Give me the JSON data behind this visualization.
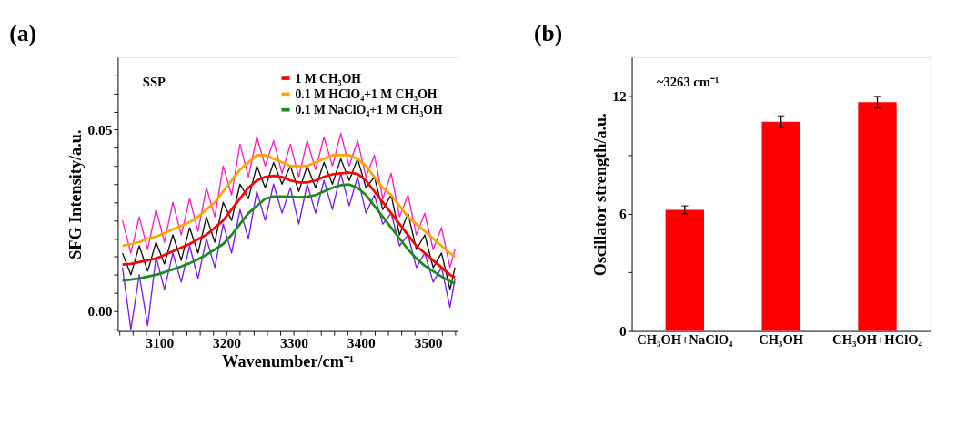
{
  "chart_data": [
    {
      "type": "line",
      "title": "(a)",
      "xlabel": "Wavenumber/cm⁻¹",
      "ylabel": "SFG Intensity/a.u.",
      "annotations": [
        "SSP"
      ],
      "legend": "top right",
      "xlim": [
        3038,
        3544
      ],
      "ylim": [
        -0.0055,
        0.07
      ],
      "xticks": [
        {
          "value": 3040,
          "label": null
        },
        {
          "value": 3060,
          "label": null
        },
        {
          "value": 3080,
          "label": null
        },
        3100,
        {
          "value": 3120,
          "label": null
        },
        {
          "value": 3140,
          "label": null
        },
        {
          "value": 3160,
          "label": null
        },
        {
          "value": 3180,
          "label": null
        },
        3200,
        {
          "value": 3220,
          "label": null
        },
        {
          "value": 3240,
          "label": null
        },
        {
          "value": 3260,
          "label": null
        },
        {
          "value": 3280,
          "label": null
        },
        3300,
        {
          "value": 3320,
          "label": null
        },
        {
          "value": 3340,
          "label": null
        },
        {
          "value": 3360,
          "label": null
        },
        {
          "value": 3380,
          "label": null
        },
        3400,
        {
          "value": 3420,
          "label": null
        },
        {
          "value": 3440,
          "label": null
        },
        {
          "value": 3460,
          "label": null
        },
        {
          "value": 3480,
          "label": null
        },
        3500,
        {
          "value": 3520,
          "label": null
        },
        {
          "value": 3540,
          "label": null
        }
      ],
      "yticks": [
        {
          "value": -0.005,
          "label": null
        },
        {
          "value": 0,
          "label": "0.00"
        },
        {
          "value": 0.005,
          "label": null
        },
        {
          "value": 0.01,
          "label": null
        },
        {
          "value": 0.015,
          "label": null
        },
        {
          "value": 0.02,
          "label": null
        },
        {
          "value": 0.025,
          "label": null
        },
        {
          "value": 0.03,
          "label": null
        },
        {
          "value": 0.035,
          "label": null
        },
        {
          "value": 0.04,
          "label": null
        },
        {
          "value": 0.045,
          "label": null
        },
        0.05,
        {
          "value": 0.055,
          "label": null
        },
        {
          "value": 0.06,
          "label": null
        },
        {
          "value": 0.065,
          "label": null
        }
      ],
      "x": [
        3045,
        3057.5,
        3070,
        3082.5,
        3095,
        3107.5,
        3120,
        3132.5,
        3145,
        3157.5,
        3170,
        3182.5,
        3195,
        3207.5,
        3220,
        3232.5,
        3245,
        3257.5,
        3270,
        3282.5,
        3295,
        3307.5,
        3320,
        3332.5,
        3345,
        3357.5,
        3370,
        3382.5,
        3395,
        3407.5,
        3420,
        3432.5,
        3445,
        3457.5,
        3470,
        3482.5,
        3495,
        3507.5,
        3520,
        3532.5,
        3540
      ],
      "series": [
        {
          "color": "#ff1fc8",
          "values": [
            0.025,
            0.016,
            0.026,
            0.017,
            0.028,
            0.019,
            0.03,
            0.021,
            0.031,
            0.022,
            0.034,
            0.026,
            0.04,
            0.032,
            0.046,
            0.037,
            0.048,
            0.04,
            0.047,
            0.038,
            0.046,
            0.037,
            0.047,
            0.039,
            0.048,
            0.04,
            0.049,
            0.04,
            0.047,
            0.037,
            0.043,
            0.031,
            0.038,
            0.026,
            0.032,
            0.021,
            0.027,
            0.017,
            0.023,
            0.012,
            0.017
          ]
        },
        {
          "color": "#111111",
          "values": [
            0.016,
            0.01,
            0.018,
            0.011,
            0.019,
            0.013,
            0.021,
            0.014,
            0.023,
            0.016,
            0.026,
            0.019,
            0.03,
            0.025,
            0.035,
            0.031,
            0.04,
            0.034,
            0.041,
            0.035,
            0.04,
            0.033,
            0.04,
            0.034,
            0.041,
            0.035,
            0.042,
            0.036,
            0.042,
            0.034,
            0.037,
            0.028,
            0.032,
            0.021,
            0.027,
            0.017,
            0.021,
            0.012,
            0.016,
            0.006,
            0.012
          ]
        },
        {
          "color": "#7a1fe8",
          "values": [
            0.012,
            -0.005,
            0.01,
            -0.004,
            0.015,
            0.006,
            0.016,
            0.008,
            0.018,
            0.009,
            0.02,
            0.012,
            0.024,
            0.016,
            0.028,
            0.02,
            0.033,
            0.025,
            0.035,
            0.027,
            0.034,
            0.024,
            0.035,
            0.027,
            0.036,
            0.028,
            0.038,
            0.029,
            0.037,
            0.027,
            0.032,
            0.024,
            0.027,
            0.018,
            0.021,
            0.012,
            0.016,
            0.008,
            0.012,
            0.001,
            0.009
          ]
        },
        {
          "name": "1 M CH₃OH",
          "color": "#ff0000",
          "values": [
            0.0128,
            0.013,
            0.0135,
            0.014,
            0.0145,
            0.0155,
            0.0165,
            0.0175,
            0.0185,
            0.0198,
            0.021,
            0.023,
            0.025,
            0.028,
            0.031,
            0.034,
            0.036,
            0.037,
            0.0373,
            0.037,
            0.036,
            0.0355,
            0.0355,
            0.036,
            0.037,
            0.0377,
            0.038,
            0.0382,
            0.0378,
            0.036,
            0.033,
            0.03,
            0.027,
            0.024,
            0.021,
            0.018,
            0.016,
            0.014,
            0.012,
            0.01,
            0.0093
          ]
        },
        {
          "name": "0.1 M HClO₄+1 M CH₃OH",
          "color": "#ffa500",
          "values": [
            0.018,
            0.0185,
            0.019,
            0.02,
            0.0205,
            0.0215,
            0.0225,
            0.0235,
            0.0245,
            0.026,
            0.028,
            0.03,
            0.033,
            0.036,
            0.039,
            0.041,
            0.043,
            0.043,
            0.042,
            0.041,
            0.04,
            0.04,
            0.04,
            0.041,
            0.042,
            0.043,
            0.043,
            0.043,
            0.042,
            0.04,
            0.037,
            0.034,
            0.032,
            0.029,
            0.026,
            0.024,
            0.022,
            0.02,
            0.018,
            0.016,
            0.015
          ]
        },
        {
          "name": "0.1 M NaClO₄+1 M CH₃OH",
          "color": "#1a8c1a",
          "values": [
            0.0084,
            0.0087,
            0.009,
            0.0095,
            0.01,
            0.0107,
            0.0115,
            0.0123,
            0.0132,
            0.0143,
            0.0155,
            0.017,
            0.0185,
            0.021,
            0.024,
            0.027,
            0.029,
            0.031,
            0.0316,
            0.0316,
            0.0315,
            0.0314,
            0.0315,
            0.032,
            0.033,
            0.034,
            0.0347,
            0.0349,
            0.034,
            0.032,
            0.029,
            0.026,
            0.023,
            0.02,
            0.017,
            0.0145,
            0.0125,
            0.011,
            0.0095,
            0.0082,
            0.0076
          ]
        }
      ]
    },
    {
      "type": "bar",
      "title": "(b)",
      "ylabel": "Oscillator strength/a.u.",
      "annotations": [
        "~3263 cm⁻¹"
      ],
      "categories": [
        "CH₃OH+NaClO₄",
        "CH₃OH",
        "CH₃OH+HClO₄"
      ],
      "values": [
        6.2,
        10.7,
        11.7
      ],
      "errors": [
        0.2,
        0.3,
        0.3
      ],
      "color": "#ff0000",
      "ylim": [
        0,
        14
      ],
      "yticks": [
        0,
        {
          "value": 3,
          "label": null
        },
        6,
        {
          "value": 9,
          "label": null
        },
        12
      ]
    }
  ]
}
